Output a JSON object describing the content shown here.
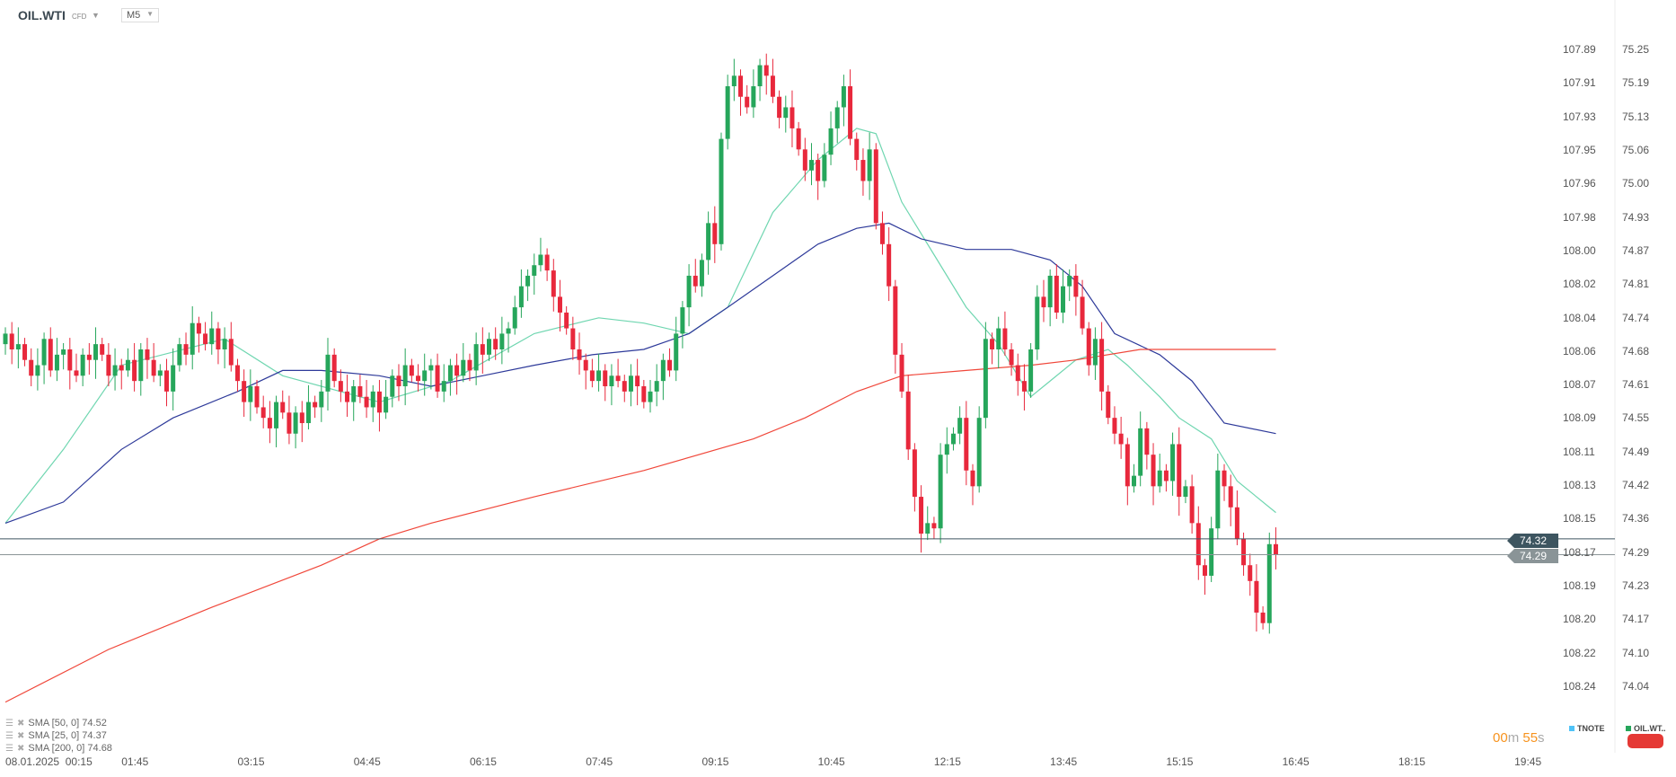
{
  "header": {
    "symbol": "OIL.WTI",
    "symbol_type": "CFD",
    "timeframe": "M5"
  },
  "legend": [
    {
      "label": "SMA [50,  0] 74.52"
    },
    {
      "label": "SMA [25,  0] 74.37"
    },
    {
      "label": "SMA [200,  0] 74.68"
    }
  ],
  "price_tags": {
    "current": "74.32",
    "previous": "74.29"
  },
  "timer": {
    "minutes": "00",
    "m": "m",
    "seconds": "55",
    "s": "s"
  },
  "instruments": {
    "tnote": "TNOTE",
    "oil": "OIL.WT..",
    "tnote_color": "#4fc3f7",
    "oil_color": "#26a65b"
  },
  "colors": {
    "up": "#26a65b",
    "down": "#e8283c",
    "sma25": "#6fd6b0",
    "sma50": "#2e3a9a",
    "sma200": "#f0473a"
  },
  "chart_data": {
    "type": "candlestick",
    "title": "OIL.WTI CFD M5",
    "date": "08.01.2025",
    "x_tick_labels": [
      "08.01.2025  00:15",
      "01:45",
      "03:15",
      "04:45",
      "06:15",
      "07:45",
      "09:15",
      "10:45",
      "12:15",
      "13:45",
      "15:15",
      "16:45",
      "18:15",
      "19:45"
    ],
    "y_ticks_left": [
      "107.89",
      "107.91",
      "107.93",
      "107.95",
      "107.96",
      "107.98",
      "108.00",
      "108.02",
      "108.04",
      "108.06",
      "108.07",
      "108.09",
      "108.11",
      "108.13",
      "108.15",
      "108.17",
      "108.19",
      "108.20",
      "108.22",
      "108.24"
    ],
    "y_ticks_right": [
      "75.25",
      "75.19",
      "75.13",
      "75.06",
      "75.00",
      "74.93",
      "74.87",
      "74.81",
      "74.74",
      "74.68",
      "74.61",
      "74.55",
      "74.49",
      "74.42",
      "74.36",
      "74.29",
      "74.23",
      "74.17",
      "74.10",
      "74.04"
    ],
    "ylim": [
      74.04,
      75.25
    ],
    "first_open": 74.69,
    "close": [
      74.71,
      74.68,
      74.69,
      74.66,
      74.63,
      74.65,
      74.7,
      74.64,
      74.67,
      74.68,
      74.64,
      74.63,
      74.67,
      74.66,
      74.69,
      74.67,
      74.63,
      74.65,
      74.64,
      74.66,
      74.62,
      74.68,
      74.66,
      74.63,
      74.64,
      74.6,
      74.65,
      74.69,
      74.67,
      74.73,
      74.71,
      74.69,
      74.72,
      74.68,
      74.7,
      74.65,
      74.62,
      74.58,
      74.61,
      74.57,
      74.55,
      74.53,
      74.58,
      74.56,
      74.52,
      74.56,
      74.54,
      74.58,
      74.57,
      74.6,
      74.67,
      74.62,
      74.6,
      74.58,
      74.61,
      74.59,
      74.57,
      74.6,
      74.56,
      74.59,
      74.63,
      74.61,
      74.65,
      74.63,
      74.62,
      74.64,
      74.65,
      74.6,
      74.62,
      74.65,
      74.63,
      74.66,
      74.64,
      74.69,
      74.67,
      74.7,
      74.68,
      74.71,
      74.72,
      74.76,
      74.8,
      74.82,
      74.84,
      74.86,
      74.83,
      74.78,
      74.75,
      74.72,
      74.68,
      74.66,
      74.64,
      74.62,
      74.64,
      74.61,
      74.63,
      74.62,
      74.6,
      74.63,
      74.61,
      74.58,
      74.6,
      74.62,
      74.66,
      74.64,
      74.71,
      74.76,
      74.82,
      74.8,
      74.85,
      74.92,
      74.88,
      75.08,
      75.18,
      75.2,
      75.16,
      75.14,
      75.18,
      75.22,
      75.2,
      75.16,
      75.12,
      75.14,
      75.1,
      75.06,
      75.02,
      75.04,
      75.0,
      75.05,
      75.1,
      75.14,
      75.18,
      75.08,
      75.04,
      75.0,
      75.06,
      74.92,
      74.88,
      74.8,
      74.67,
      74.6,
      74.49,
      74.4,
      74.33,
      74.35,
      74.34,
      74.48,
      74.5,
      74.52,
      74.55,
      74.45,
      74.42,
      74.55,
      74.7,
      74.68,
      74.72,
      74.68,
      74.65,
      74.62,
      74.6,
      74.68,
      74.78,
      74.76,
      74.82,
      74.75,
      74.8,
      74.82,
      74.78,
      74.72,
      74.65,
      74.7,
      74.6,
      74.55,
      74.52,
      74.5,
      74.42,
      74.44,
      74.53,
      74.48,
      74.42,
      74.45,
      74.43,
      74.5,
      74.4,
      74.42,
      74.35,
      74.27,
      74.25,
      74.34,
      74.45,
      74.42,
      74.38,
      74.32,
      74.27,
      74.24,
      74.18,
      74.16,
      74.31,
      74.29
    ],
    "series": [
      {
        "name": "SMA 25",
        "points": [
          [
            0,
            74.35
          ],
          [
            9,
            74.49
          ],
          [
            18,
            74.65
          ],
          [
            34,
            74.7
          ],
          [
            43,
            74.63
          ],
          [
            58,
            74.58
          ],
          [
            69,
            74.62
          ],
          [
            82,
            74.71
          ],
          [
            92,
            74.74
          ],
          [
            99,
            74.73
          ],
          [
            106,
            74.71
          ],
          [
            112,
            74.76
          ],
          [
            119,
            74.94
          ],
          [
            126,
            75.04
          ],
          [
            132,
            75.1
          ],
          [
            135,
            75.09
          ],
          [
            139,
            74.96
          ],
          [
            144,
            74.86
          ],
          [
            149,
            74.76
          ],
          [
            154,
            74.69
          ],
          [
            159,
            74.59
          ],
          [
            162,
            74.62
          ],
          [
            166,
            74.66
          ],
          [
            171,
            74.68
          ],
          [
            174,
            74.65
          ],
          [
            179,
            74.59
          ],
          [
            182,
            74.55
          ],
          [
            187,
            74.51
          ],
          [
            191,
            74.43
          ],
          [
            197,
            74.37
          ]
        ]
      },
      {
        "name": "SMA 50",
        "points": [
          [
            0,
            74.35
          ],
          [
            9,
            74.39
          ],
          [
            18,
            74.49
          ],
          [
            26,
            74.55
          ],
          [
            36,
            74.6
          ],
          [
            43,
            74.64
          ],
          [
            49,
            74.64
          ],
          [
            58,
            74.63
          ],
          [
            66,
            74.61
          ],
          [
            74,
            74.63
          ],
          [
            82,
            74.65
          ],
          [
            91,
            74.67
          ],
          [
            99,
            74.68
          ],
          [
            106,
            74.71
          ],
          [
            112,
            74.76
          ],
          [
            119,
            74.82
          ],
          [
            126,
            74.88
          ],
          [
            132,
            74.91
          ],
          [
            137,
            74.92
          ],
          [
            142,
            74.89
          ],
          [
            149,
            74.87
          ],
          [
            156,
            74.87
          ],
          [
            162,
            74.85
          ],
          [
            167,
            74.8
          ],
          [
            172,
            74.71
          ],
          [
            179,
            74.67
          ],
          [
            184,
            74.62
          ],
          [
            189,
            74.54
          ],
          [
            197,
            74.52
          ]
        ]
      },
      {
        "name": "SMA 200",
        "points": [
          [
            0,
            74.01
          ],
          [
            16,
            74.11
          ],
          [
            32,
            74.19
          ],
          [
            49,
            74.27
          ],
          [
            58,
            74.32
          ],
          [
            66,
            74.35
          ],
          [
            82,
            74.4
          ],
          [
            99,
            74.45
          ],
          [
            116,
            74.51
          ],
          [
            124,
            74.55
          ],
          [
            132,
            74.6
          ],
          [
            139,
            74.63
          ],
          [
            149,
            74.64
          ],
          [
            159,
            74.65
          ],
          [
            166,
            74.66
          ],
          [
            176,
            74.68
          ],
          [
            182,
            74.68
          ],
          [
            197,
            74.68
          ]
        ]
      }
    ],
    "hlines": [
      74.32,
      74.29
    ],
    "grid": false
  }
}
